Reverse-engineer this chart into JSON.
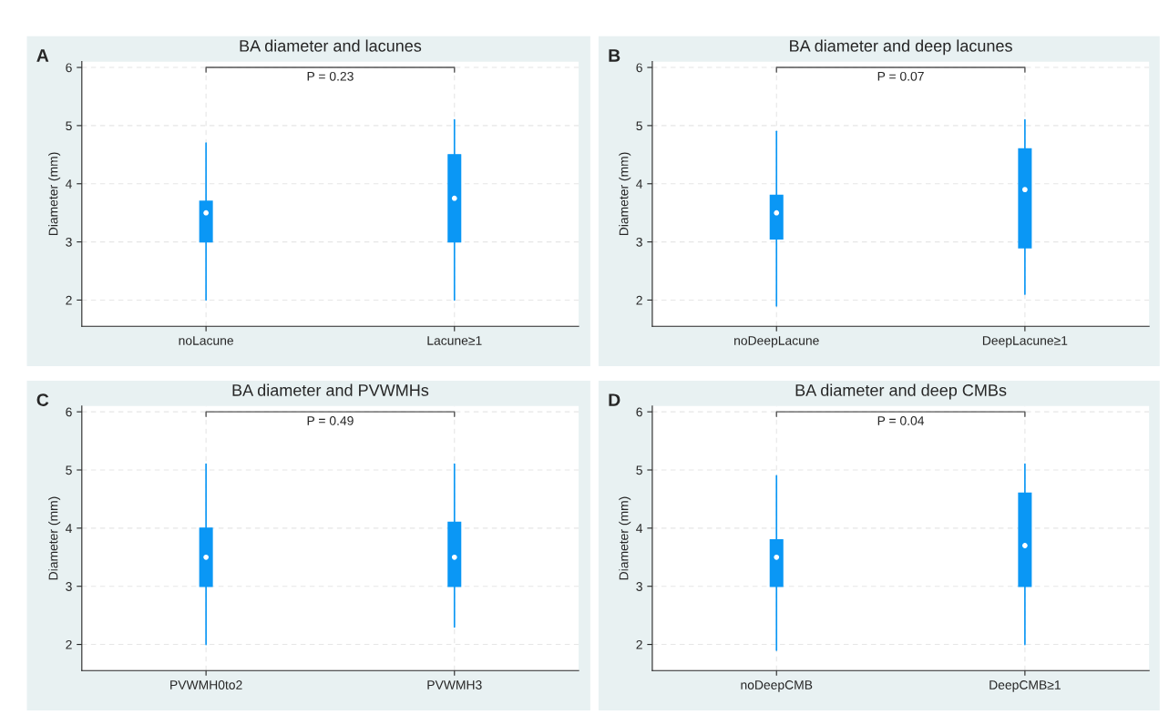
{
  "chart_data": [
    {
      "type": "box",
      "title": "BA diameter and lacunes",
      "ylabel": "Diameter (mm)",
      "categories": [
        "noLacune",
        "Lacune≥1"
      ],
      "color": "#0a97f5",
      "boxes": [
        {
          "low": 2.0,
          "q1": 3.0,
          "median": 3.5,
          "q3": 3.7,
          "high": 4.7
        },
        {
          "low": 2.0,
          "q1": 3.0,
          "median": 3.75,
          "q3": 4.5,
          "high": 5.1
        }
      ],
      "ylim": [
        1.55,
        6.1
      ],
      "yticks": [
        2,
        3,
        4,
        5,
        6
      ],
      "grid": true,
      "annotations": [
        "A",
        "P = 0.23"
      ]
    },
    {
      "type": "box",
      "title": "BA diameter and deep lacunes",
      "ylabel": "Diameter (mm)",
      "categories": [
        "noDeepLacune",
        "DeepLacune≥1"
      ],
      "color": "#0a97f5",
      "boxes": [
        {
          "low": 1.9,
          "q1": 3.05,
          "median": 3.5,
          "q3": 3.8,
          "high": 4.9
        },
        {
          "low": 2.1,
          "q1": 2.9,
          "median": 3.9,
          "q3": 4.6,
          "high": 5.1
        }
      ],
      "ylim": [
        1.55,
        6.1
      ],
      "yticks": [
        2,
        3,
        4,
        5,
        6
      ],
      "grid": true,
      "annotations": [
        "B",
        "P = 0.07"
      ]
    },
    {
      "type": "box",
      "title": "BA diameter and PVWMHs",
      "ylabel": "Diameter (mm)",
      "categories": [
        "PVWMH0to2",
        "PVWMH3"
      ],
      "color": "#0a97f5",
      "boxes": [
        {
          "low": 2.0,
          "q1": 3.0,
          "median": 3.5,
          "q3": 4.0,
          "high": 5.1
        },
        {
          "low": 2.3,
          "q1": 3.0,
          "median": 3.5,
          "q3": 4.1,
          "high": 5.1
        }
      ],
      "ylim": [
        1.55,
        6.1
      ],
      "yticks": [
        2,
        3,
        4,
        5,
        6
      ],
      "grid": true,
      "annotations": [
        "C",
        "P = 0.49"
      ]
    },
    {
      "type": "box",
      "title": "BA diameter and deep CMBs",
      "ylabel": "Diameter (mm)",
      "categories": [
        "noDeepCMB",
        "DeepCMB≥1"
      ],
      "color": "#0a97f5",
      "boxes": [
        {
          "low": 1.9,
          "q1": 3.0,
          "median": 3.5,
          "q3": 3.8,
          "high": 4.9
        },
        {
          "low": 2.0,
          "q1": 3.0,
          "median": 3.7,
          "q3": 4.6,
          "high": 5.1
        }
      ],
      "ylim": [
        1.55,
        6.1
      ],
      "yticks": [
        2,
        3,
        4,
        5,
        6
      ],
      "grid": true,
      "annotations": [
        "D",
        "P = 0.04"
      ]
    }
  ]
}
